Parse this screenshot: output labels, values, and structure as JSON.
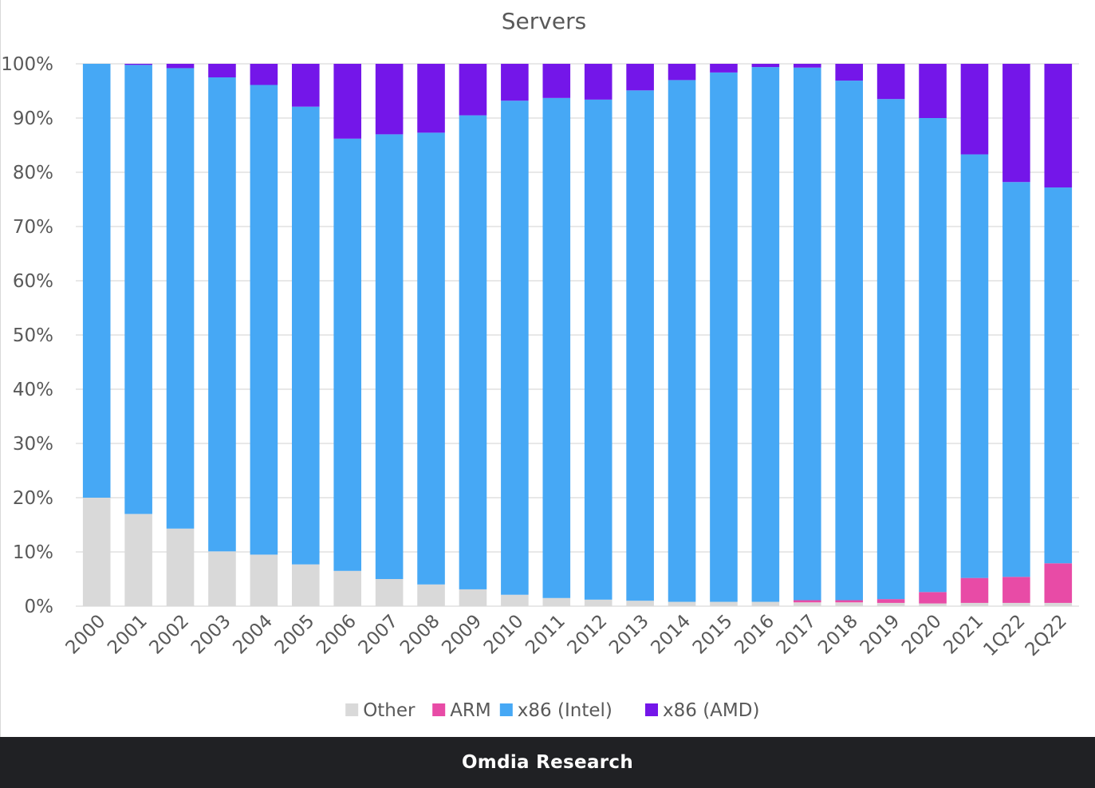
{
  "chart_data": {
    "type": "bar",
    "stacked": true,
    "title": "Servers",
    "xlabel": "",
    "ylabel": "",
    "ylim": [
      0,
      100
    ],
    "y_ticks": [
      "0%",
      "10%",
      "20%",
      "30%",
      "40%",
      "50%",
      "60%",
      "70%",
      "80%",
      "90%",
      "100%"
    ],
    "grid": true,
    "legend_position": "bottom",
    "categories": [
      "2000",
      "2001",
      "2002",
      "2003",
      "2004",
      "2005",
      "2006",
      "2007",
      "2008",
      "2009",
      "2010",
      "2011",
      "2012",
      "2013",
      "2014",
      "2015",
      "2016",
      "2017",
      "2018",
      "2019",
      "2020",
      "2021",
      "1Q22",
      "2Q22"
    ],
    "series": [
      {
        "name": "Other",
        "color": "#d9d9d9",
        "values": [
          20,
          17,
          14.3,
          10.1,
          9.5,
          7.7,
          6.5,
          5,
          4,
          3.1,
          2.1,
          1.5,
          1.2,
          1,
          0.8,
          0.8,
          0.8,
          0.7,
          0.7,
          0.6,
          0.5,
          0.6,
          0.6,
          0.6
        ]
      },
      {
        "name": "ARM",
        "color": "#e84ba6",
        "values": [
          0,
          0,
          0,
          0,
          0,
          0,
          0,
          0,
          0,
          0,
          0,
          0,
          0,
          0,
          0,
          0,
          0,
          0.4,
          0.4,
          0.7,
          2.1,
          4.6,
          4.8,
          7.3
        ]
      },
      {
        "name": "x86 (Intel)",
        "color": "#46a8f5",
        "values": [
          80,
          82.8,
          84.9,
          87.4,
          86.6,
          84.4,
          79.7,
          82,
          83.3,
          87.4,
          91.1,
          92.2,
          92.2,
          94.1,
          96.2,
          97.6,
          98.6,
          98.2,
          95.8,
          92.2,
          87.4,
          78.1,
          72.8,
          69.3
        ]
      },
      {
        "name": "x86 (AMD)",
        "color": "#7416e9",
        "values": [
          0,
          0.2,
          0.8,
          2.5,
          3.9,
          7.9,
          13.8,
          13,
          12.7,
          9.5,
          6.8,
          6.3,
          6.6,
          4.9,
          3,
          1.6,
          0.6,
          0.7,
          3.1,
          6.5,
          10,
          16.7,
          21.8,
          22.8
        ]
      }
    ]
  },
  "footer": {
    "caption": "Omdia Research"
  }
}
